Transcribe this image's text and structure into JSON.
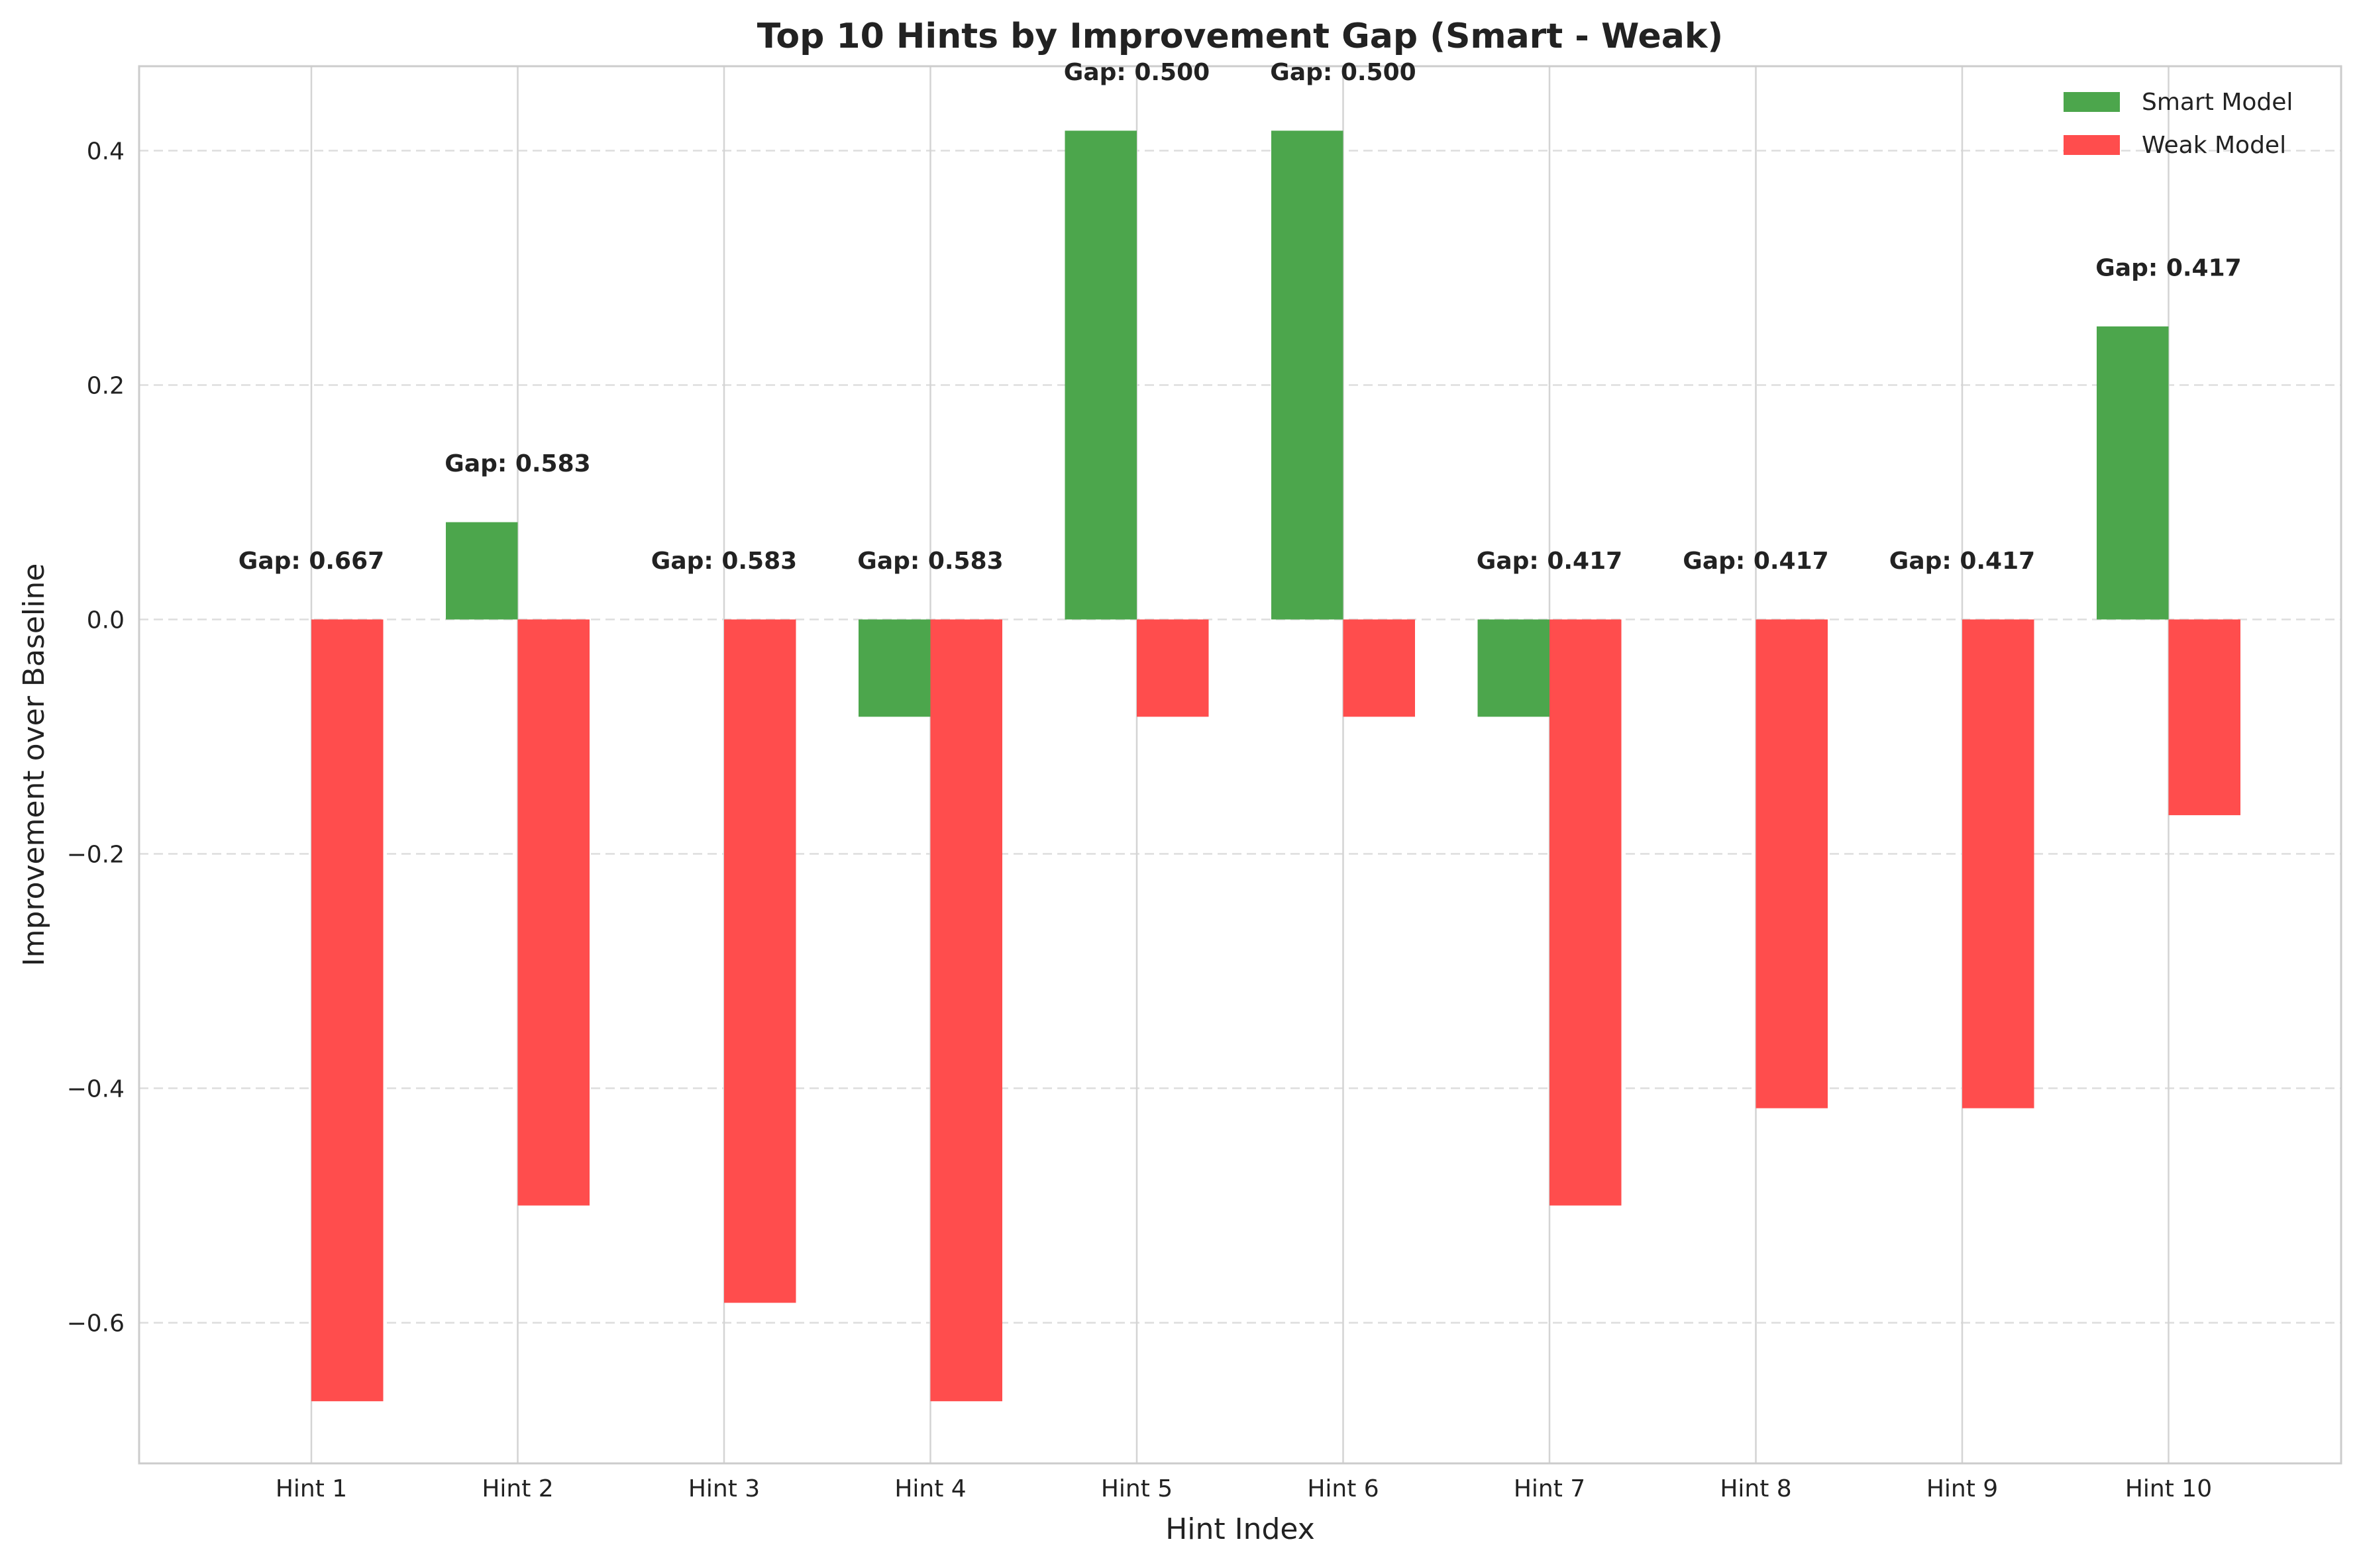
{
  "chart_data": {
    "type": "bar",
    "title": "Top 10 Hints by Improvement Gap (Smart - Weak)",
    "xlabel": "Hint Index",
    "ylabel": "Improvement over Baseline",
    "categories": [
      "Hint 1",
      "Hint 2",
      "Hint 3",
      "Hint 4",
      "Hint 5",
      "Hint 6",
      "Hint 7",
      "Hint 8",
      "Hint 9",
      "Hint 10"
    ],
    "series": [
      {
        "name": "Smart Model",
        "color": "#4ca64c",
        "values": [
          0.0,
          0.083,
          0.0,
          -0.083,
          0.417,
          0.417,
          -0.083,
          0.0,
          0.0,
          0.25
        ]
      },
      {
        "name": "Weak Model",
        "color": "#ff4d4d",
        "values": [
          -0.667,
          -0.5,
          -0.583,
          -0.667,
          -0.083,
          -0.083,
          -0.5,
          -0.417,
          -0.417,
          -0.167
        ]
      }
    ],
    "annotations": [
      "Gap: 0.667",
      "Gap: 0.583",
      "Gap: 0.583",
      "Gap: 0.583",
      "Gap: 0.500",
      "Gap: 0.500",
      "Gap: 0.417",
      "Gap: 0.417",
      "Gap: 0.417",
      "Gap: 0.417"
    ],
    "yticks": [
      -0.6,
      -0.4,
      -0.2,
      0.0,
      0.2,
      0.4
    ],
    "ytick_labels": [
      "−0.6",
      "−0.4",
      "−0.2",
      "0.0",
      "0.2",
      "0.4"
    ],
    "ylim": [
      -0.72,
      0.472
    ],
    "grid": true,
    "legend_position": "top-right"
  }
}
